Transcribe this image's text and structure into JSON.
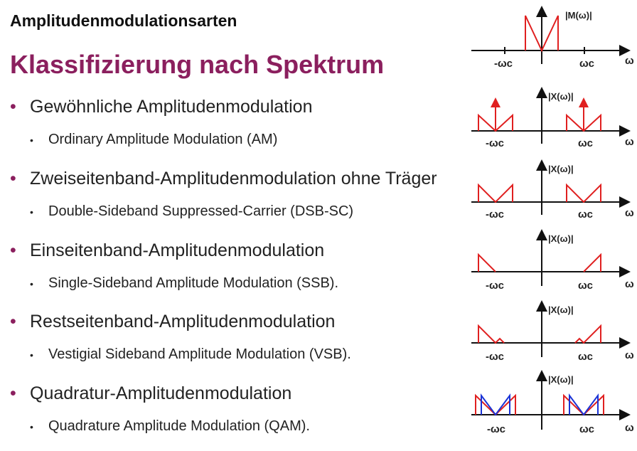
{
  "header": {
    "supertitle": "Amplitudenmodulationsarten",
    "title": "Klassifizierung nach Spektrum"
  },
  "items": [
    {
      "de": "Gewöhnliche Amplitudenmodulation",
      "en": "Ordinary Amplitude Modulation (AM)"
    },
    {
      "de": "Zweiseitenband-Amplitudenmodulation ohne Träger",
      "en": "Double-Sideband Suppressed-Carrier (DSB-SC)"
    },
    {
      "de": "Einseitenband-Amplitudenmodulation",
      "en": "Single-Sideband Amplitude Modulation (SSB)."
    },
    {
      "de": "Restseitenband-Amplitudenmodulation",
      "en": "Vestigial Sideband Amplitude Modulation (VSB)."
    },
    {
      "de": "Quadratur-Amplitudenmodulation",
      "en": "Quadrature Amplitude Modulation (QAM)."
    }
  ],
  "diagrams": [
    {
      "label": "|M(ω)|",
      "neg": "-ωc",
      "pos": "ωc",
      "axis": "ω"
    },
    {
      "label": "|X(ω)|",
      "neg": "-ωc",
      "pos": "ωc",
      "axis": "ω"
    },
    {
      "label": "|X(ω)|",
      "neg": "-ωc",
      "pos": "ωc",
      "axis": "ω"
    },
    {
      "label": "|X(ω)|",
      "neg": "-ωc",
      "pos": "ωc",
      "axis": "ω"
    },
    {
      "label": "|X(ω)|",
      "neg": "-ωc",
      "pos": "ωc",
      "axis": "ω"
    },
    {
      "label": "|X(ω)|",
      "neg": "-ωc",
      "pos": "ωc",
      "axis": "ω"
    }
  ],
  "colors": {
    "accent": "#8B1F5E",
    "spectrum": "#e02020",
    "qam": "#1a33d6"
  }
}
